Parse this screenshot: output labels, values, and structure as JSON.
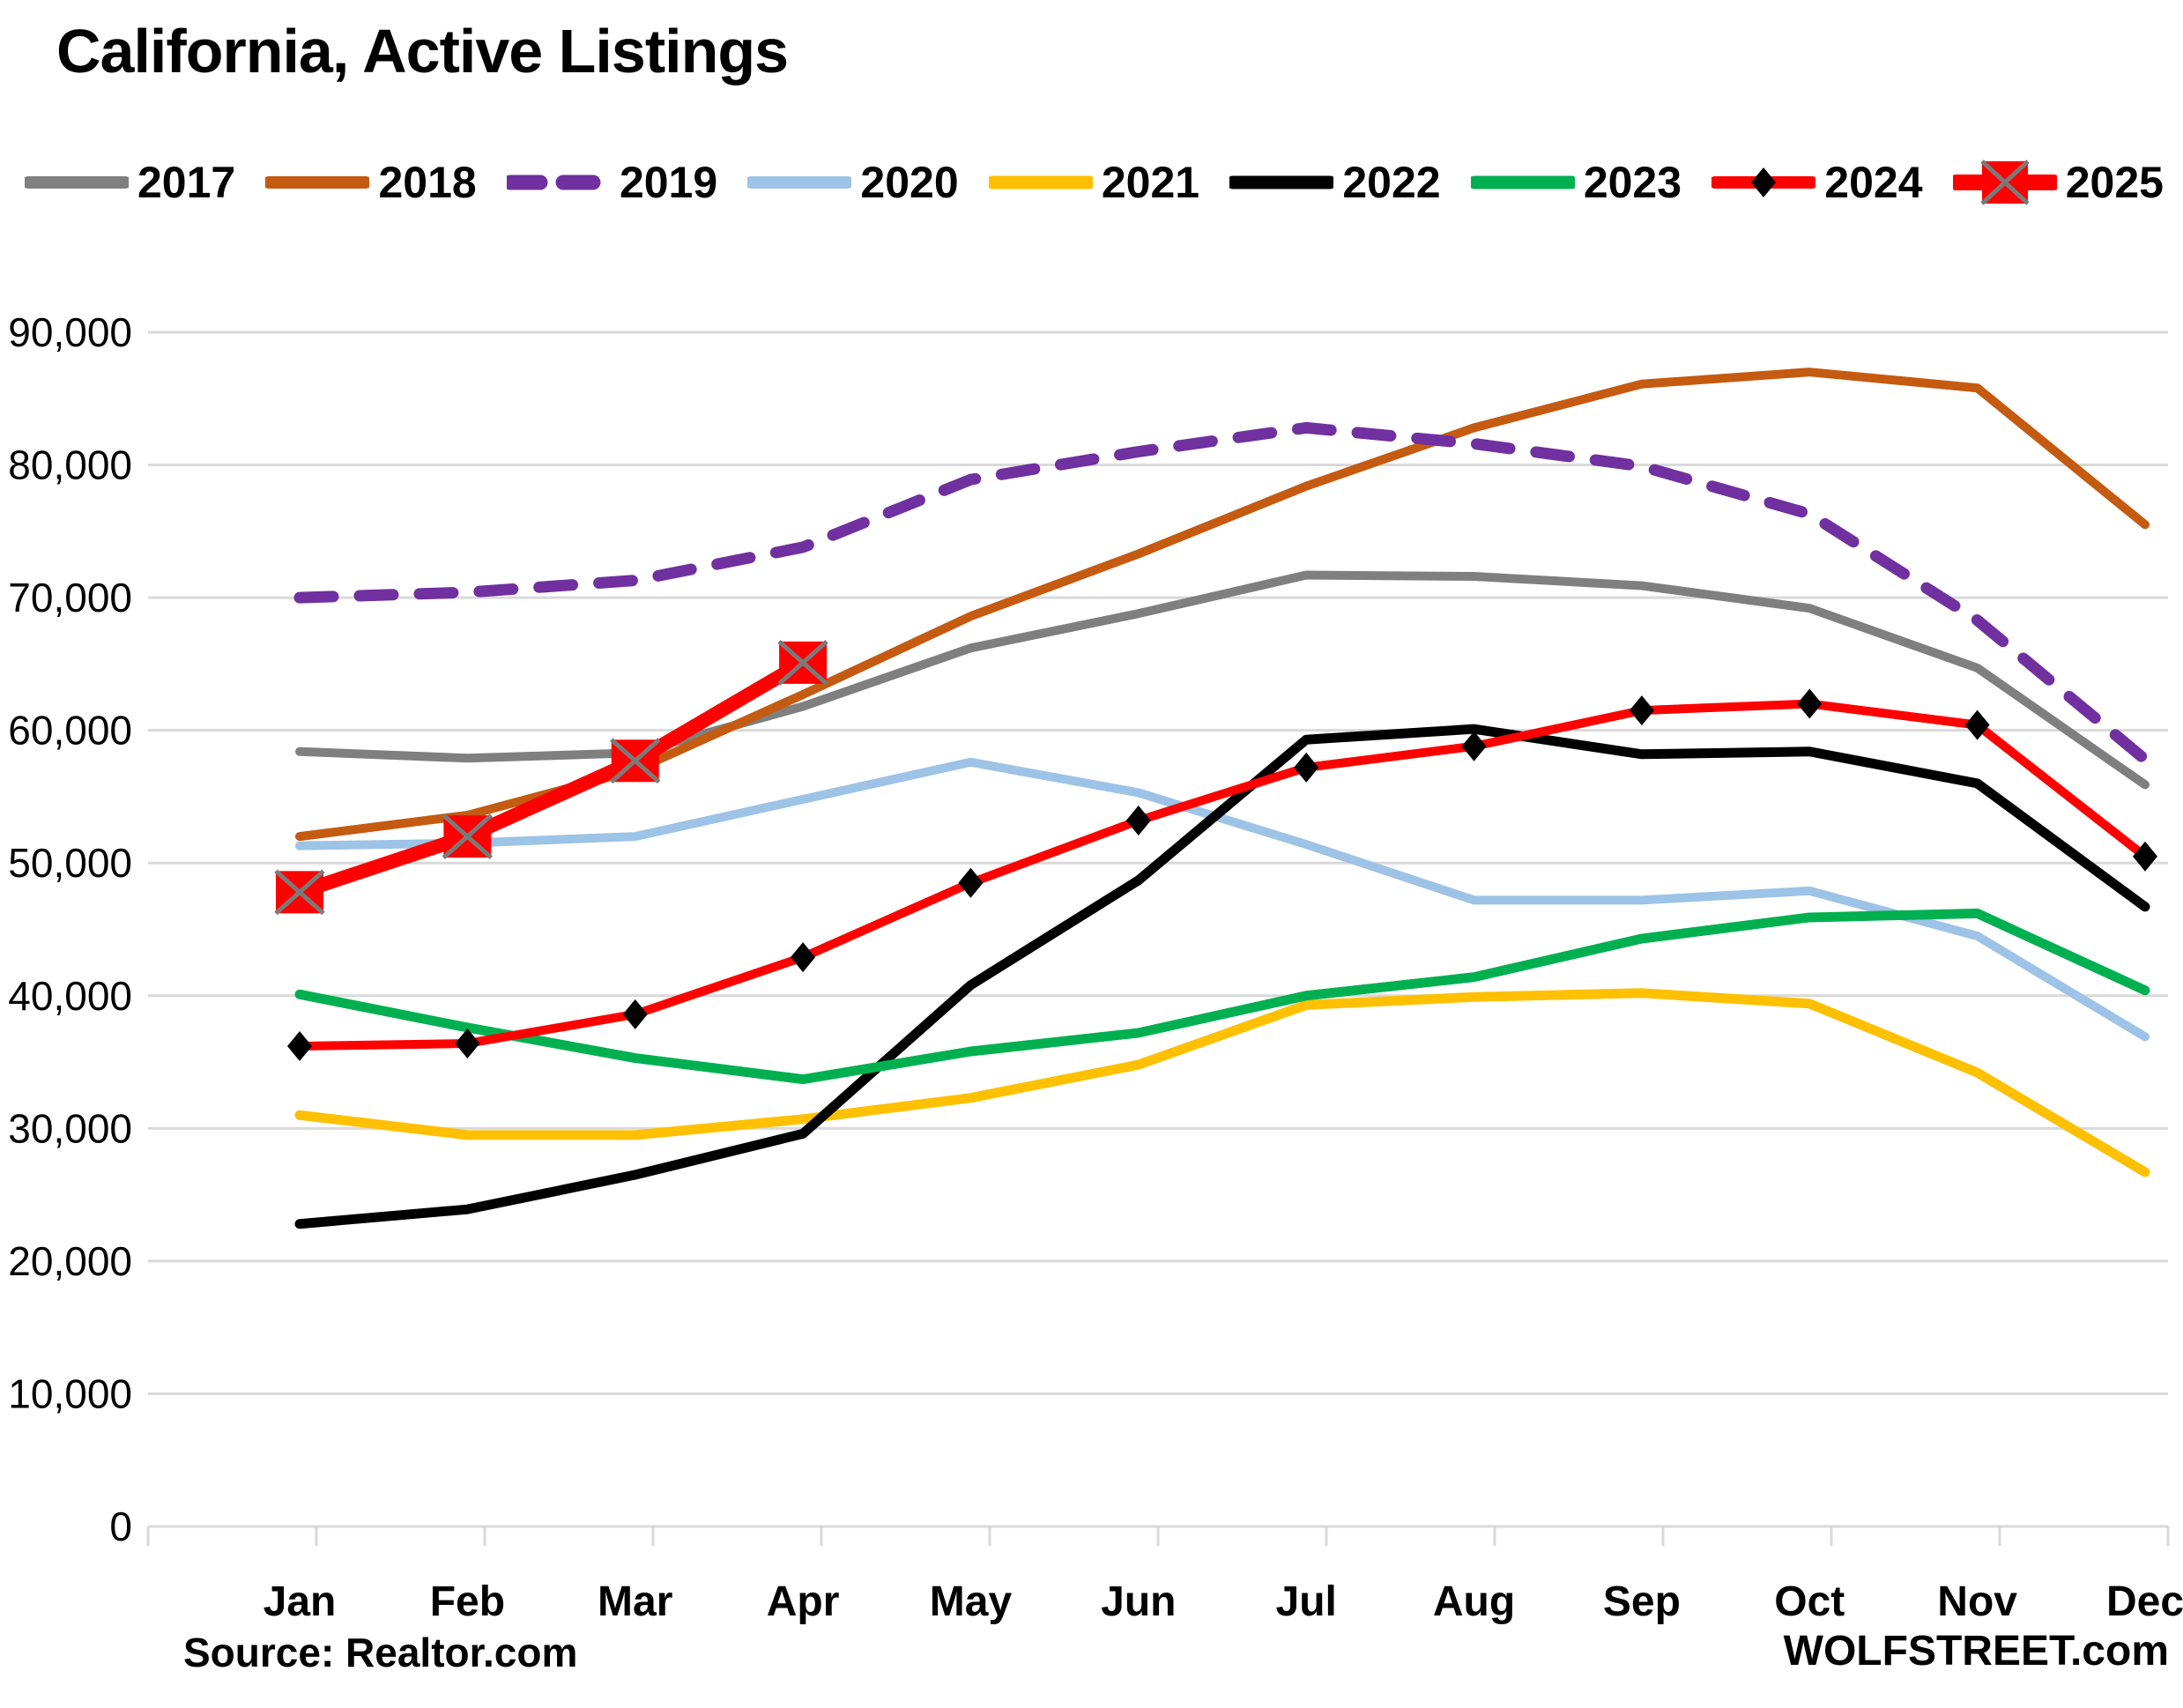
{
  "title": "California, Active Listings",
  "source_note": "Source: Realtor.com",
  "site_credit": "WOLFSTREET.com",
  "colors": {
    "background": "#FFFFFF",
    "gridline": "#D9D9D9",
    "text": "#000000",
    "marker_x_cross": "#7A7A7A"
  },
  "chart_data": {
    "type": "line",
    "title": "California, Active Listings",
    "xlabel": "",
    "ylabel": "",
    "grid": true,
    "legend_position": "top",
    "ylim": [
      0,
      90000
    ],
    "y_tick_interval": 10000,
    "y_tick_values": [
      0,
      10000,
      20000,
      30000,
      40000,
      50000,
      60000,
      70000,
      80000,
      90000
    ],
    "y_tick_labels": [
      "0",
      "10,000",
      "20,000",
      "30,000",
      "40,000",
      "50,000",
      "60,000",
      "70,000",
      "80,000",
      "90,000"
    ],
    "categories": [
      "Jan",
      "Feb",
      "Mar",
      "Apr",
      "May",
      "Jun",
      "Jul",
      "Aug",
      "Sep",
      "Oct",
      "Nov",
      "Dec"
    ],
    "series": [
      {
        "name": "2017",
        "color": "#7F7F7F",
        "style": "solid",
        "width": 10,
        "marker": "none",
        "values": [
          58400,
          57900,
          58300,
          61800,
          66200,
          68800,
          71700,
          71600,
          70900,
          69200,
          64700,
          55900
        ]
      },
      {
        "name": "2018",
        "color": "#C55A11",
        "style": "solid",
        "width": 10,
        "marker": "none",
        "values": [
          52000,
          53600,
          57000,
          62700,
          68600,
          73300,
          78400,
          82800,
          86100,
          87000,
          85800,
          75500
        ]
      },
      {
        "name": "2019",
        "color": "#7030A0",
        "style": "dashed",
        "width": 13,
        "marker": "none",
        "values": [
          70000,
          70400,
          71300,
          73800,
          78900,
          81000,
          82800,
          81600,
          79900,
          76300,
          68300,
          57800
        ]
      },
      {
        "name": "2020",
        "color": "#9DC3E6",
        "style": "solid",
        "width": 10,
        "marker": "none",
        "values": [
          51300,
          51500,
          52000,
          54800,
          57600,
          55300,
          51400,
          47200,
          47200,
          47900,
          44500,
          36900
        ]
      },
      {
        "name": "2021",
        "color": "#FFC000",
        "style": "solid",
        "width": 11,
        "marker": "none",
        "values": [
          31000,
          29500,
          29500,
          30700,
          32300,
          34800,
          39300,
          39900,
          40200,
          39400,
          34200,
          26700
        ]
      },
      {
        "name": "2022",
        "color": "#000000",
        "style": "solid",
        "width": 11,
        "marker": "none",
        "values": [
          22800,
          23900,
          26500,
          29600,
          40800,
          48700,
          59300,
          60100,
          58200,
          58400,
          56000,
          46700
        ]
      },
      {
        "name": "2023",
        "color": "#00B050",
        "style": "solid",
        "width": 11,
        "marker": "none",
        "values": [
          40100,
          37600,
          35300,
          33700,
          35800,
          37200,
          40000,
          41400,
          44300,
          45900,
          46200,
          40400
        ]
      },
      {
        "name": "2024",
        "color": "#FF0000",
        "style": "solid",
        "width": 10,
        "marker": "diamond",
        "marker_color": "#000000",
        "values": [
          36200,
          36400,
          38600,
          42900,
          48500,
          53200,
          57200,
          58800,
          61500,
          62000,
          60400,
          50500
        ]
      },
      {
        "name": "2025",
        "color": "#FF0000",
        "style": "solid",
        "width": 16,
        "marker": "x-square",
        "marker_color": "#FF0000",
        "values": [
          47800,
          52000,
          57700,
          65100,
          null,
          null,
          null,
          null,
          null,
          null,
          null,
          null
        ]
      }
    ]
  }
}
